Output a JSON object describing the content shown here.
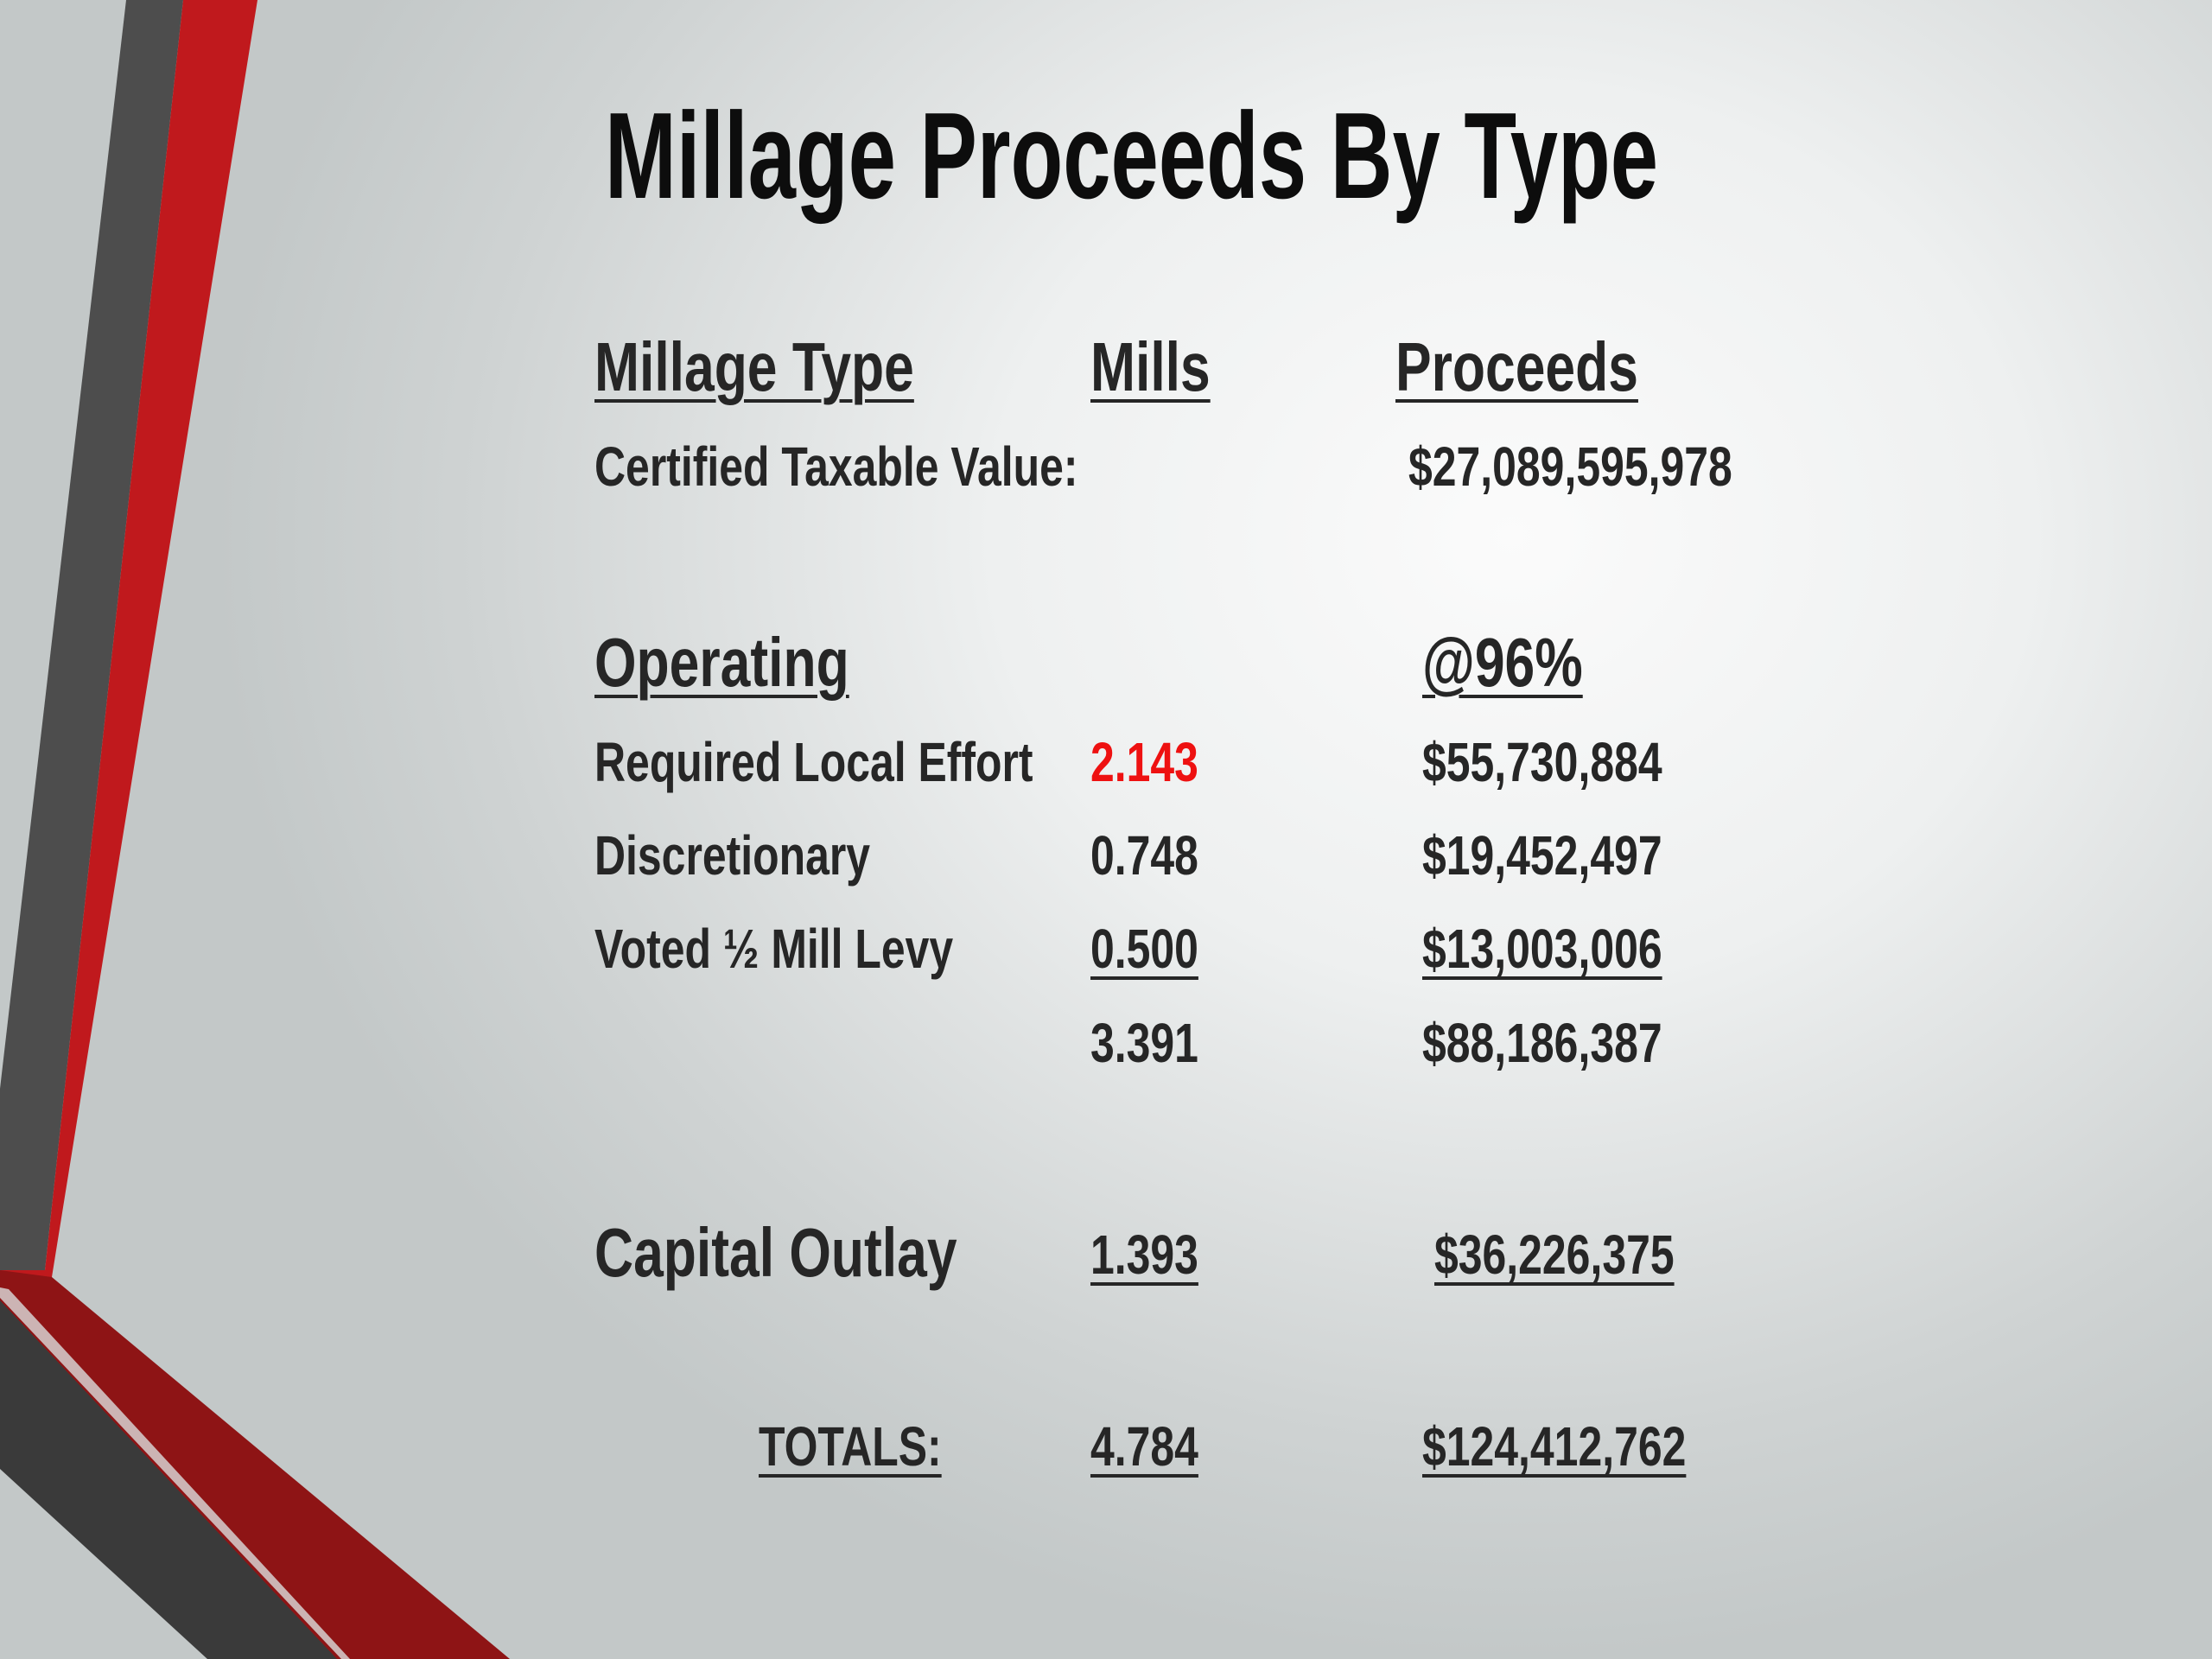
{
  "slide": {
    "title": "Millage Proceeds By Type",
    "colors": {
      "accent_red": "#c0191d",
      "accent_dark": "#4a4a4a",
      "highlight_red": "#ee1111"
    }
  },
  "table": {
    "headers": {
      "type": "Millage Type",
      "mills": "Mills",
      "proceeds": "Proceeds"
    },
    "certified": {
      "label": "Certified Taxable Value:",
      "value": "$27,089,595,978"
    },
    "operating": {
      "label": "Operating",
      "collection_note": "@96%",
      "rows": [
        {
          "type": "Required Local Effort",
          "mills": "2.143",
          "proceeds": "$55,730,884",
          "highlight": true
        },
        {
          "type": "Discretionary",
          "mills": "0.748",
          "proceeds": "$19,452,497"
        },
        {
          "type": "Voted ½ Mill Levy",
          "mills": "0.500",
          "proceeds": "$13,003,006"
        }
      ],
      "subtotal": {
        "mills": "3.391",
        "proceeds": "$88,186,387"
      }
    },
    "capital_outlay": {
      "label": "Capital Outlay",
      "mills": "1.393",
      "proceeds": "$36,226,375"
    },
    "totals": {
      "label": "TOTALS:",
      "mills": "4.784",
      "proceeds": "$124,412,762"
    }
  }
}
